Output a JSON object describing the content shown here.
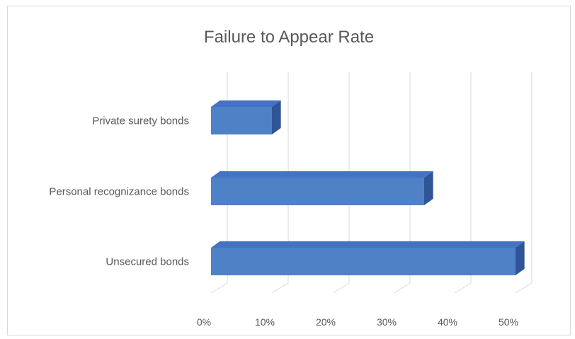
{
  "chart_data": {
    "type": "bar",
    "orientation": "horizontal",
    "title": "Failure to Appear Rate",
    "categories": [
      "Private surety bonds",
      "Personal recognizance bonds",
      "Unsecured bonds"
    ],
    "values": [
      0.1,
      0.35,
      0.5
    ],
    "xlim": [
      0,
      0.5
    ],
    "ticks": [
      "0%",
      "10%",
      "20%",
      "30%",
      "40%",
      "50%"
    ],
    "grid": true,
    "legend": "none",
    "bar_color": "#4f81c7",
    "bar_top_color": "#4472c4",
    "bar_side_color": "#2f5597"
  }
}
